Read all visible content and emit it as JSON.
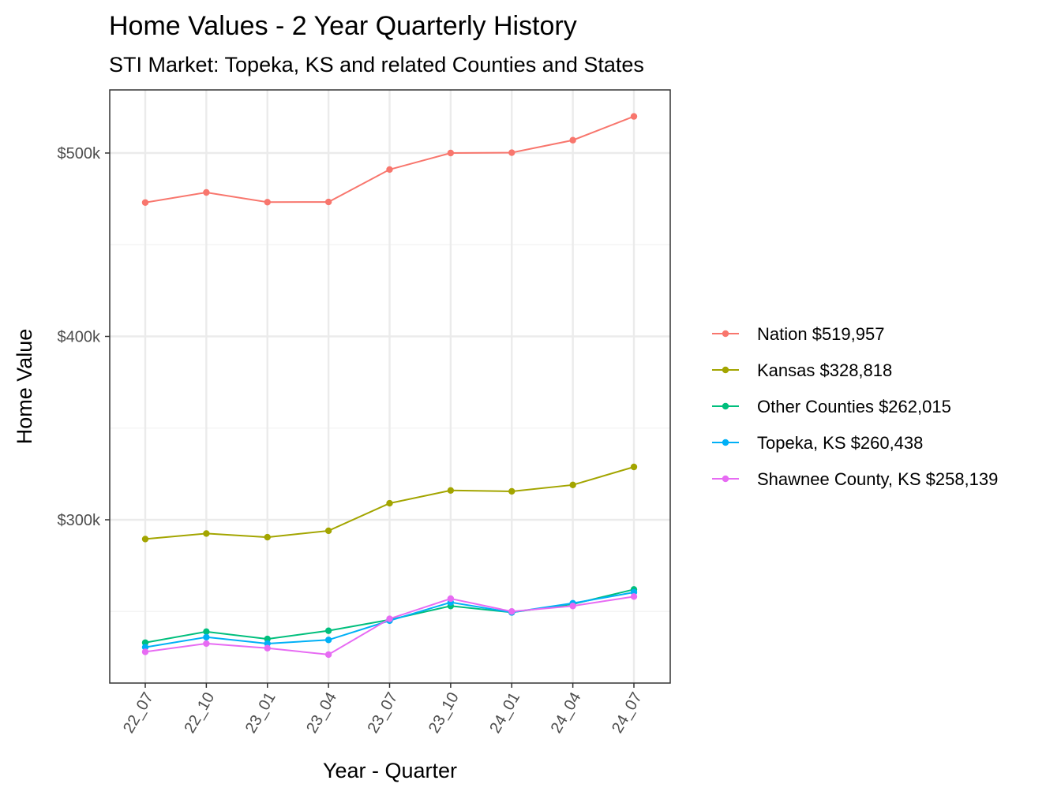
{
  "chart_data": {
    "type": "line",
    "title": "Home Values - 2 Year Quarterly History",
    "subtitle": "STI Market: Topeka, KS and related Counties and States",
    "xlabel": "Year - Quarter",
    "ylabel": "Home Value",
    "categories": [
      "22_07",
      "22_10",
      "23_01",
      "23_04",
      "23_07",
      "23_10",
      "24_01",
      "24_04",
      "24_07"
    ],
    "ylim": [
      210000,
      530000
    ],
    "y_major_ticks": [
      300000,
      400000,
      500000
    ],
    "y_tick_labels": [
      "$300k",
      "$400k",
      "$500k"
    ],
    "y_minor_ticks": [
      250000,
      350000,
      450000
    ],
    "grid": true,
    "legend_position": "right",
    "series": [
      {
        "name": "Nation $519,957",
        "color": "#F8766D",
        "values": [
          473000,
          478500,
          473200,
          473300,
          491000,
          500000,
          500200,
          507000,
          519957
        ]
      },
      {
        "name": "Kansas $328,818",
        "color": "#A3A500",
        "values": [
          289500,
          292500,
          290500,
          294000,
          309000,
          316000,
          315500,
          319000,
          328818
        ]
      },
      {
        "name": "Other Counties $262,015",
        "color": "#00BF7D",
        "values": [
          233000,
          239000,
          235000,
          239500,
          245500,
          253000,
          249500,
          254000,
          262015
        ]
      },
      {
        "name": "Topeka, KS $260,438",
        "color": "#00B0F6",
        "values": [
          230500,
          236000,
          232500,
          234500,
          245000,
          255000,
          249500,
          254500,
          260438
        ]
      },
      {
        "name": "Shawnee County, KS $258,139",
        "color": "#E76BF3",
        "values": [
          228000,
          232500,
          230000,
          226500,
          246000,
          257000,
          250000,
          253000,
          258139
        ]
      }
    ]
  }
}
